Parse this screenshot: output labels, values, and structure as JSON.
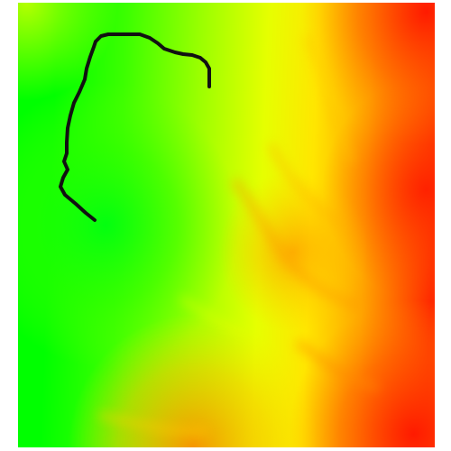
{
  "map": {
    "kind": "elevation-heatmap",
    "color_scale": {
      "low": "#00ff00",
      "mid_low": "#80ff00",
      "mid": "#ffff00",
      "mid_high": "#ffa500",
      "high": "#ff2a00"
    },
    "path_color": "#111111",
    "background": "#ffffff"
  }
}
